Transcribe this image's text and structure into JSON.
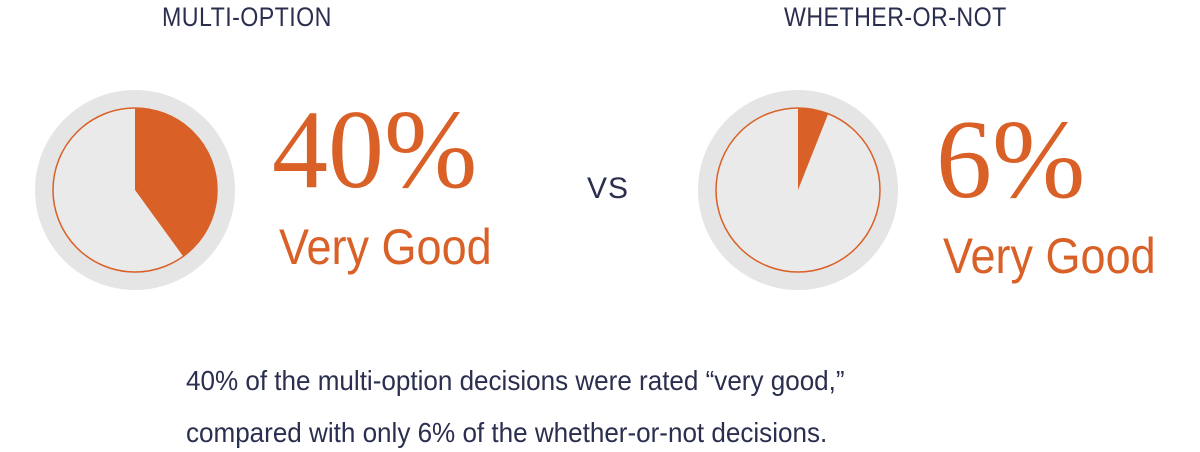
{
  "chart_data": [
    {
      "type": "pie",
      "title": "MULTI-OPTION",
      "value_label": "40%",
      "rating_label": "Very Good",
      "slices": [
        {
          "label": "Very Good",
          "value": 40,
          "color": "#d96127"
        },
        {
          "label": "",
          "value": 60,
          "color": "#ebeaea"
        }
      ]
    },
    {
      "type": "pie",
      "title": "WHETHER-OR-NOT",
      "value_label": "6%",
      "rating_label": "Very Good",
      "slices": [
        {
          "label": "Very Good",
          "value": 6,
          "color": "#d96127"
        },
        {
          "label": "",
          "value": 94,
          "color": "#ebeaea"
        }
      ]
    }
  ],
  "separator": "VS",
  "caption": {
    "line1": "40% of the multi-option decisions were rated “very good,”",
    "line2": "compared with only 6% of the whether-or-not decisions."
  },
  "colors": {
    "accent": "#d96127",
    "pie_background": "#ebeaea",
    "outer_ring": "#e6e5e5",
    "text_dark": "#2b2f4f"
  }
}
